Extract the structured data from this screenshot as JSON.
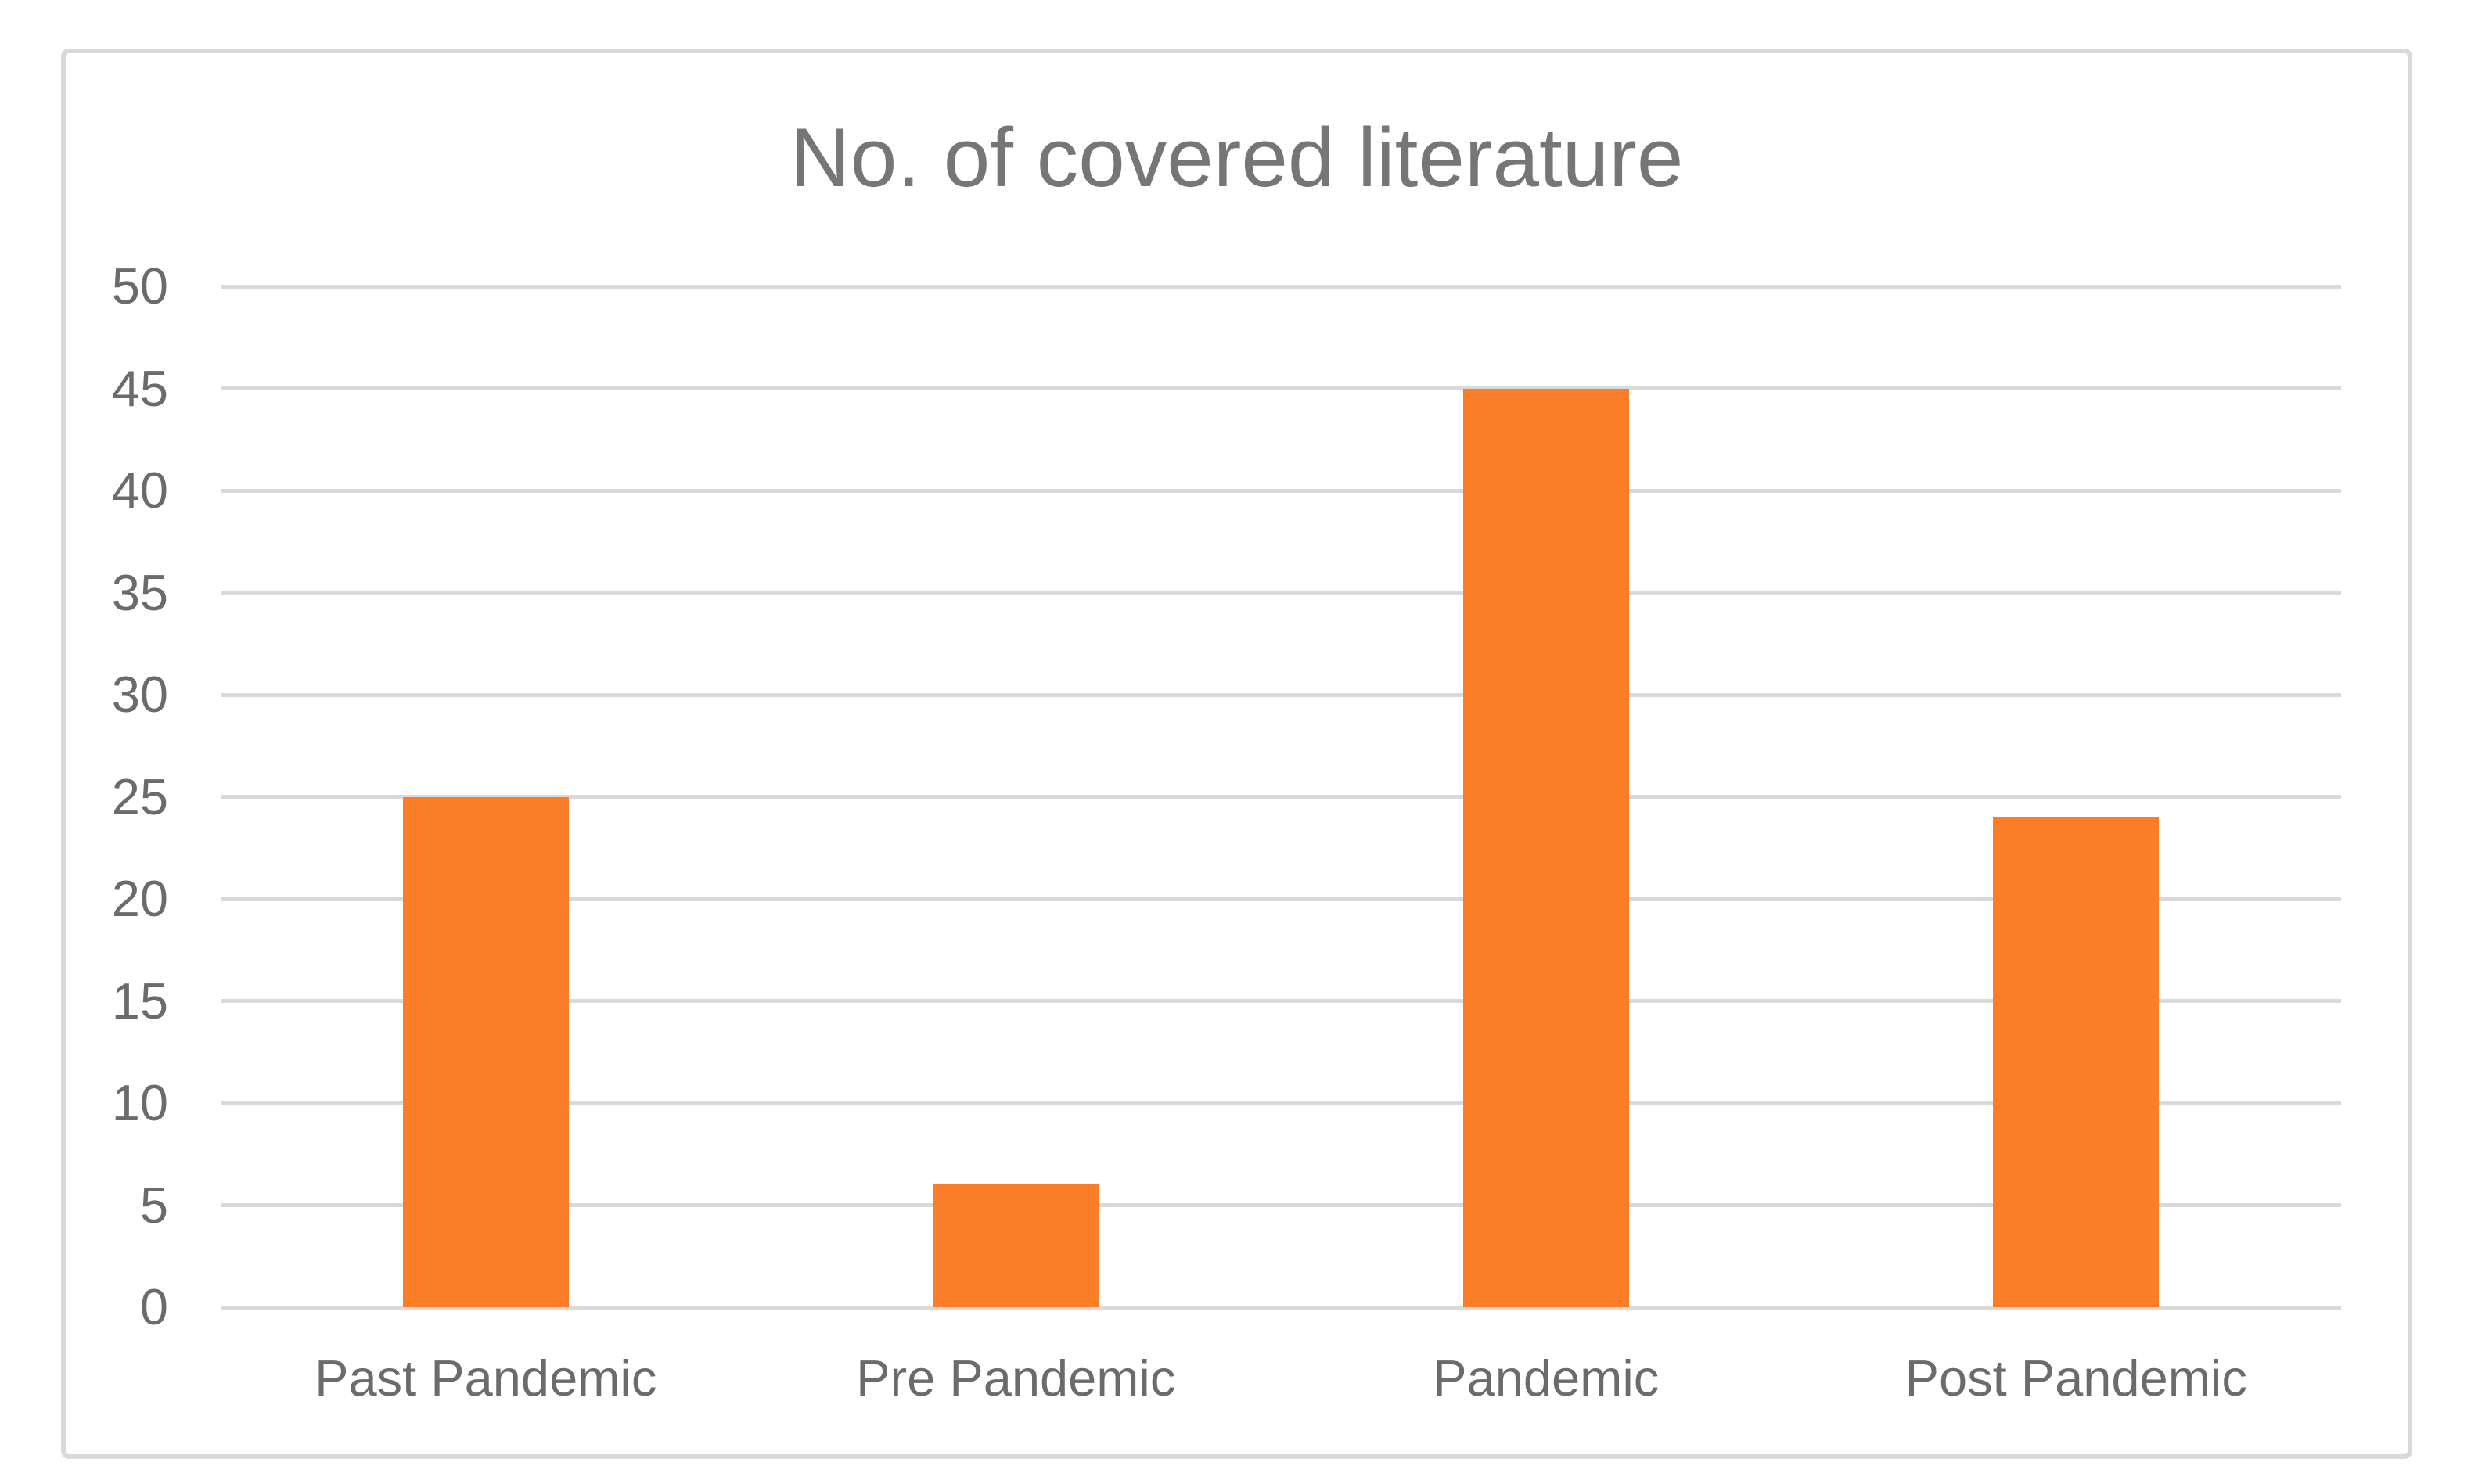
{
  "figure": {
    "background": "#FFFFFF",
    "border_color": "#D9D9D9"
  },
  "chart_data": {
    "type": "bar",
    "title": "No. of covered literature",
    "categories": [
      "Past Pandemic",
      "Pre Pandemic",
      "Pandemic",
      "Post Pandemic"
    ],
    "values": [
      25,
      6,
      45,
      24
    ],
    "xlabel": "",
    "ylabel": "",
    "ylim": [
      0,
      50
    ],
    "yticks": [
      0,
      5,
      10,
      15,
      20,
      25,
      30,
      35,
      40,
      45,
      50
    ],
    "grid": true,
    "legend": false,
    "gridline_color": "#D9D9D9",
    "bar_color": "#FB7D27",
    "title_color": "#767676",
    "axis_label_color": "#6B6B6B"
  }
}
